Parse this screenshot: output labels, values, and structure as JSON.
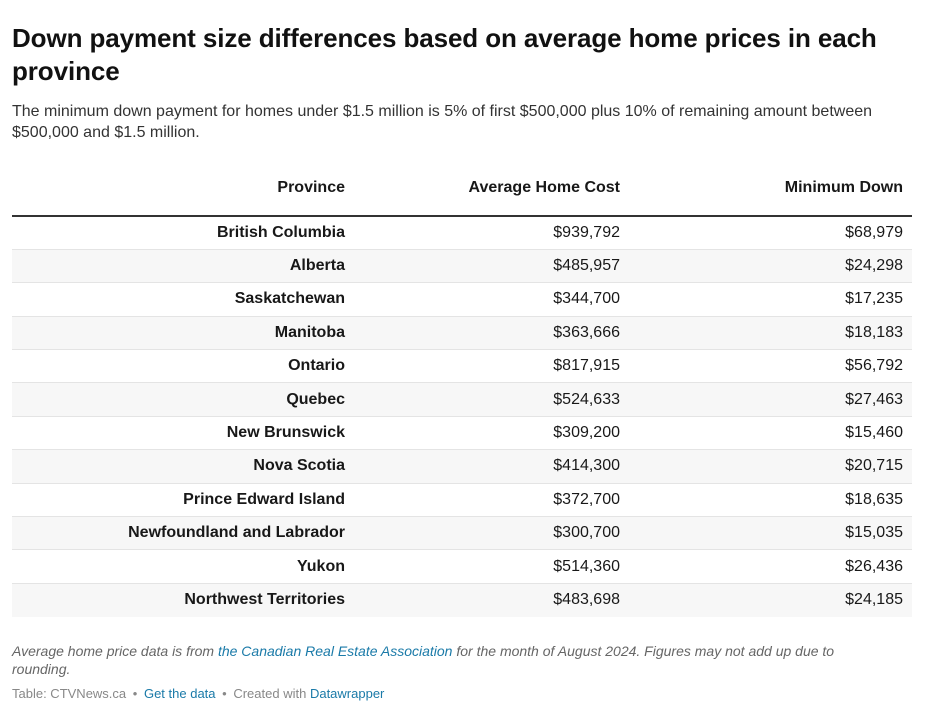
{
  "title": "Down payment size differences based on average home prices in each province",
  "subtitle": "The minimum down payment for homes under $1.5 million is 5% of first $500,000 plus 10% of remaining amount between $500,000 and $1.5 million.",
  "chart_data": {
    "type": "table",
    "columns": [
      "Province",
      "Average Home Cost",
      "Minimum Down"
    ],
    "rows": [
      {
        "province": "British Columbia",
        "cost": "$939,792",
        "down": "$68,979"
      },
      {
        "province": "Alberta",
        "cost": "$485,957",
        "down": "$24,298"
      },
      {
        "province": "Saskatchewan",
        "cost": "$344,700",
        "down": "$17,235"
      },
      {
        "province": "Manitoba",
        "cost": "$363,666",
        "down": "$18,183"
      },
      {
        "province": "Ontario",
        "cost": "$817,915",
        "down": "$56,792"
      },
      {
        "province": "Quebec",
        "cost": "$524,633",
        "down": "$27,463"
      },
      {
        "province": "New Brunswick",
        "cost": "$309,200",
        "down": "$15,460"
      },
      {
        "province": "Nova Scotia",
        "cost": "$414,300",
        "down": "$20,715"
      },
      {
        "province": "Prince Edward Island",
        "cost": "$372,700",
        "down": "$18,635"
      },
      {
        "province": "Newfoundland and Labrador",
        "cost": "$300,700",
        "down": "$15,035"
      },
      {
        "province": "Yukon",
        "cost": "$514,360",
        "down": "$26,436"
      },
      {
        "province": "Northwest Territories",
        "cost": "$483,698",
        "down": "$24,185"
      }
    ]
  },
  "notes": {
    "before": "Average home price data is from ",
    "link": "the Canadian Real Estate Association",
    "after": " for the month of August 2024. Figures may not add up due to rounding."
  },
  "footer": {
    "source": "Table: CTVNews.ca",
    "separator": "•",
    "get_data": "Get the data",
    "created_with": "Created with",
    "tool": "Datawrapper"
  }
}
